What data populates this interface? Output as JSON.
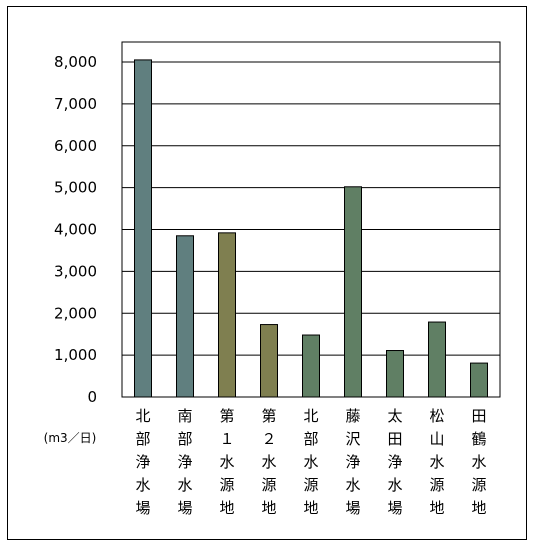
{
  "chart_data": {
    "type": "bar",
    "categories": [
      "北部浄水場",
      "南部浄水場",
      "第１水源地",
      "第２水源地",
      "北部水源地",
      "藤沢浄水場",
      "太田浄水場",
      "松山水源地",
      "田鶴水源地"
    ],
    "values": [
      8050,
      3850,
      3920,
      1730,
      1480,
      5020,
      1110,
      1790,
      810
    ],
    "bar_colors": [
      "#607f7f",
      "#607f7f",
      "#7f7f50",
      "#7f7f50",
      "#607f64",
      "#607f64",
      "#607f64",
      "#607f64",
      "#607f64"
    ],
    "unit_label": "(m3／日)",
    "ylim": [
      0,
      8000
    ],
    "yticks": [
      0,
      1000,
      2000,
      3000,
      4000,
      5000,
      6000,
      7000,
      8000
    ],
    "ytick_labels": [
      "0",
      "1,000",
      "2,000",
      "3,000",
      "4,000",
      "5,000",
      "6,000",
      "7,000",
      "8,000"
    ],
    "grid": true,
    "legend": "none"
  }
}
